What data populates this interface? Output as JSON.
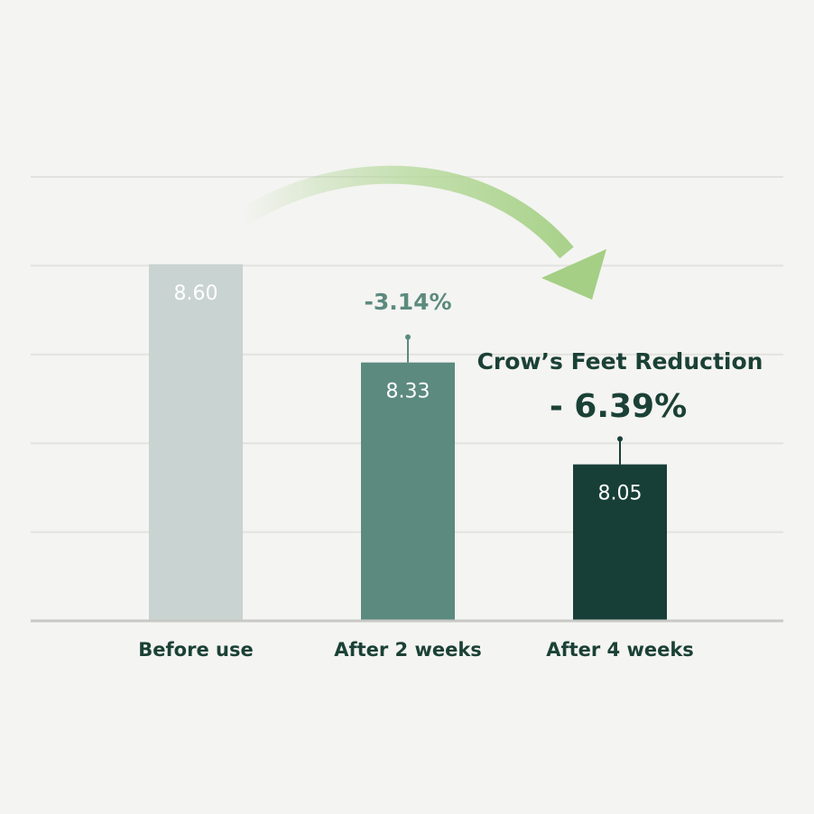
{
  "chart_data": {
    "type": "bar",
    "categories": [
      "Before use",
      "After 2 weeks",
      "After 4 weeks"
    ],
    "values": [
      8.6,
      8.33,
      8.05
    ],
    "value_labels": [
      "8.60",
      "8.33",
      "8.05"
    ],
    "errors": [
      null,
      0.07,
      0.07
    ],
    "colors": [
      "#c9d3d1",
      "#5c8a7e",
      "#173f37"
    ],
    "ylim": [
      7.62,
      8.84
    ],
    "grid": true,
    "annotations": [
      "-3.14%",
      "Crow’s Feet Reduction",
      "- 6.39%"
    ]
  }
}
